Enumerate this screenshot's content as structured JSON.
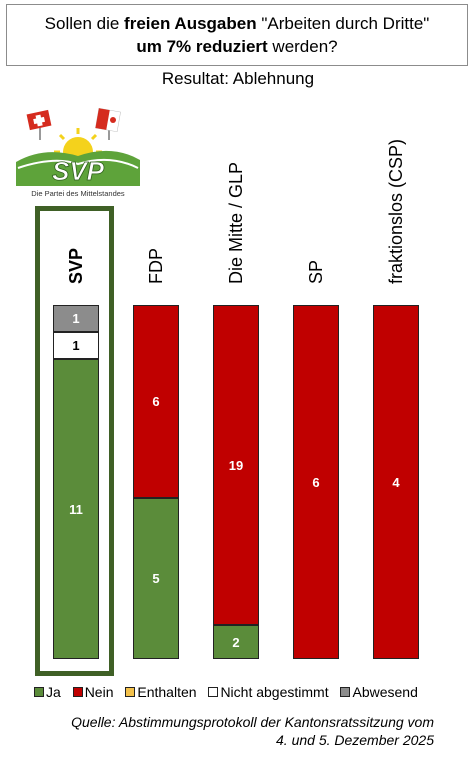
{
  "header": {
    "title_part1": "Sollen die ",
    "title_bold1": "freien Ausgaben",
    "title_part2": " \"Arbeiten durch Dritte\"",
    "title_bold2": "um 7% reduziert",
    "title_part3": " werden?",
    "result": "Resultat: Ablehnung"
  },
  "logo": {
    "text": "SVP",
    "tagline": "Die Partei des Mittelstandes"
  },
  "colors": {
    "ja": "#5b8c3a",
    "nein": "#c00000",
    "enthalten": "#f3c14b",
    "nicht_abgestimmt": "#ffffff",
    "abwesend": "#8c8c8c",
    "svp_frame": "#3f6026"
  },
  "chart_data": {
    "type": "bar",
    "stacked": true,
    "orientation": "vertical",
    "categories": [
      "SVP",
      "FDP",
      "Die Mitte / GLP",
      "SP",
      "fraktionslos (CSP)"
    ],
    "series": [
      {
        "name": "Ja",
        "values": [
          11,
          5,
          2,
          0,
          0
        ]
      },
      {
        "name": "Nein",
        "values": [
          0,
          6,
          19,
          6,
          4
        ]
      },
      {
        "name": "Enthalten",
        "values": [
          0,
          0,
          0,
          0,
          0
        ]
      },
      {
        "name": "Nicht abgestimmt",
        "values": [
          1,
          0,
          0,
          0,
          0
        ]
      },
      {
        "name": "Abwesend",
        "values": [
          1,
          0,
          0,
          0,
          0
        ]
      }
    ],
    "normalized": true,
    "legend_position": "bottom",
    "highlighted_category": "SVP"
  },
  "legend": {
    "items": [
      "Ja",
      "Nein",
      "Enthalten",
      "Nicht abgestimmt",
      "Abwesend"
    ]
  },
  "source": {
    "line1": "Quelle: Abstimmungsprotokoll der Kantonsratssitzung vom",
    "line2": "4. und 5. Dezember 2025"
  }
}
